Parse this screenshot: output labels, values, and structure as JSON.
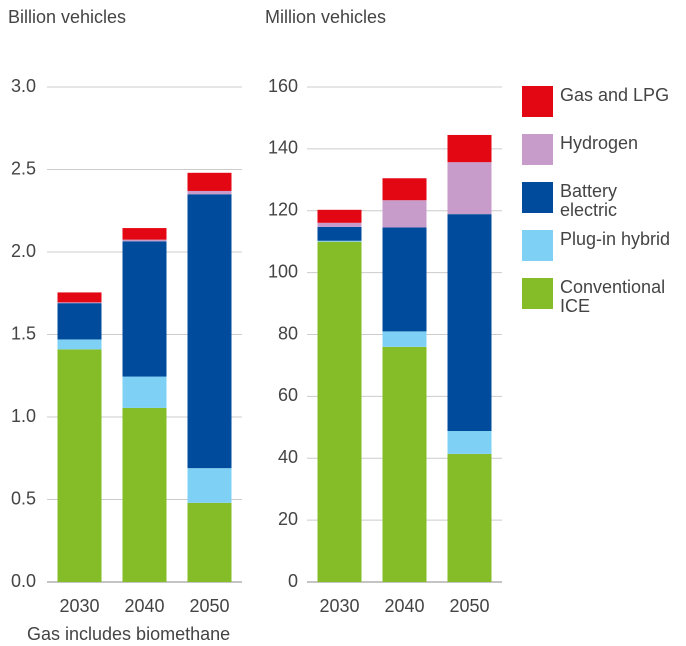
{
  "chart_data": [
    {
      "type": "bar",
      "stacked": true,
      "y_label": "Billion vehicles",
      "note": "Gas includes biomethane",
      "categories": [
        "2030",
        "2040",
        "2050"
      ],
      "series": [
        {
          "name": "Conventional ICE",
          "color": "#84bd27",
          "values": [
            1.41,
            1.055,
            0.48
          ]
        },
        {
          "name": "Plug-in hybrid",
          "color": "#7fd0f5",
          "values": [
            0.06,
            0.19,
            0.21
          ]
        },
        {
          "name": "Battery electric",
          "color": "#004b9c",
          "values": [
            0.22,
            0.82,
            1.66
          ]
        },
        {
          "name": "Hydrogen",
          "color": "#c79bca",
          "values": [
            0.005,
            0.01,
            0.02
          ]
        },
        {
          "name": "Gas and LPG",
          "color": "#e30613",
          "values": [
            0.06,
            0.07,
            0.11
          ]
        }
      ],
      "ylim": [
        0,
        3
      ],
      "yticks": [
        {
          "value": 0,
          "label": "0.0"
        },
        {
          "value": 0.5,
          "label": "0.5"
        },
        {
          "value": 1,
          "label": "1.0"
        },
        {
          "value": 1.5,
          "label": "1.5"
        },
        {
          "value": 2,
          "label": "2.0"
        },
        {
          "value": 2.5,
          "label": "2.5"
        },
        {
          "value": 3,
          "label": "3.0"
        }
      ],
      "grid": true
    },
    {
      "type": "bar",
      "stacked": true,
      "y_label": "Million vehicles",
      "categories": [
        "2030",
        "2040",
        "2050"
      ],
      "series": [
        {
          "name": "Conventional ICE",
          "color": "#84bd27",
          "values": [
            110,
            76,
            41.4
          ]
        },
        {
          "name": "Plug-in hybrid",
          "color": "#7fd0f5",
          "values": [
            0.3,
            5,
            7.4
          ]
        },
        {
          "name": "Battery electric",
          "color": "#004b9c",
          "values": [
            4.5,
            33.6,
            70.1
          ]
        },
        {
          "name": "Hydrogen",
          "color": "#c79bca",
          "values": [
            1.3,
            8.8,
            16.8
          ]
        },
        {
          "name": "Gas and LPG",
          "color": "#e30613",
          "values": [
            4.2,
            7.1,
            8.8
          ]
        }
      ],
      "ylim": [
        0,
        160
      ],
      "yticks": [
        0,
        20,
        40,
        60,
        80,
        100,
        120,
        140,
        160
      ],
      "grid": true,
      "legend": "right"
    }
  ]
}
